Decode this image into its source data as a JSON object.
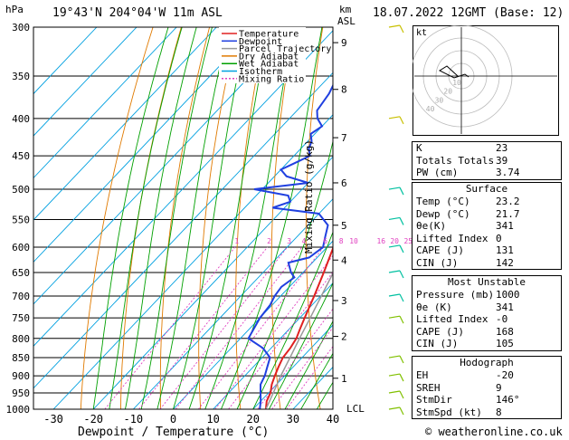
{
  "header": {
    "location": "19°43'N  204°04'W  11m  ASL",
    "datetime": "18.07.2022  12GMT  (Base: 12)",
    "hpa_label": "hPa",
    "km_label": "km",
    "asl_label": "ASL"
  },
  "axis": {
    "xlabel": "Dewpoint / Temperature (°C)",
    "mixing_ratio_label": "Mixing Ratio (g/kg)",
    "lcl_label": "LCL"
  },
  "legend": [
    {
      "label": "Temperature",
      "color": "#e02020"
    },
    {
      "label": "Dewpoint",
      "color": "#2040e0"
    },
    {
      "label": "Parcel Trajectory",
      "color": "#999999"
    },
    {
      "label": "Dry Adiabat",
      "color": "#e07a00"
    },
    {
      "label": "Wet Adiabat",
      "color": "#00a000"
    },
    {
      "label": "Isotherm",
      "color": "#00a0e0"
    },
    {
      "label": "Mixing Ratio",
      "color": "#e040c0"
    }
  ],
  "chart_data": {
    "type": "line",
    "title": "",
    "xlabel": "Dewpoint / Temperature (°C)",
    "ylabel": "hPa",
    "xlim": [
      -35,
      40
    ],
    "ylim": [
      1000,
      300
    ],
    "pressure_ticks": [
      300,
      350,
      400,
      450,
      500,
      550,
      600,
      650,
      700,
      750,
      800,
      850,
      900,
      950,
      1000
    ],
    "temp_ticks": [
      -30,
      -20,
      -10,
      0,
      10,
      20,
      30,
      40
    ],
    "km_ticks": [
      {
        "km": "1",
        "p": 907
      },
      {
        "km": "2",
        "p": 795
      },
      {
        "km": "3",
        "p": 710
      },
      {
        "km": "4",
        "p": 625
      },
      {
        "km": "5",
        "p": 560
      },
      {
        "km": "6",
        "p": 490
      },
      {
        "km": "7",
        "p": 425
      },
      {
        "km": "8",
        "p": 365
      },
      {
        "km": "9",
        "p": 315
      }
    ],
    "mixing_ratio_values": [
      "1",
      "2",
      "3",
      "4",
      "6",
      "8",
      "10",
      "16",
      "20",
      "25"
    ],
    "series": [
      {
        "name": "Temperature",
        "p": [
          1000,
          975,
          950,
          925,
          900,
          875,
          850,
          825,
          800,
          775,
          750,
          700,
          650,
          600,
          550,
          500,
          450,
          400,
          350,
          300
        ],
        "values": [
          23.2,
          21.5,
          20.5,
          18.8,
          17.5,
          16.3,
          15.2,
          14.8,
          14.0,
          12.6,
          11.2,
          8.4,
          5.2,
          1.6,
          -2.0,
          -7.0,
          -10.5,
          -17.0,
          -24.0,
          -31.5
        ]
      },
      {
        "name": "Dewpoint",
        "p": [
          1000,
          975,
          950,
          925,
          900,
          875,
          850,
          825,
          800,
          775,
          750,
          720,
          700,
          680,
          660,
          650,
          630,
          620,
          600,
          580,
          560,
          540,
          530,
          520,
          510,
          500,
          490,
          480,
          470,
          460,
          450,
          440,
          430,
          420,
          410,
          400,
          390,
          380,
          370,
          360,
          350,
          340,
          330,
          320,
          310,
          300
        ],
        "values": [
          21.7,
          20.0,
          18.0,
          16.0,
          15.0,
          13.5,
          12.0,
          8.0,
          2.0,
          1.0,
          0.0,
          -0.5,
          -1.5,
          -2.0,
          -1.0,
          -3.0,
          -6.0,
          -2.0,
          -1.0,
          -3.0,
          -5.0,
          -10.0,
          -23.0,
          -20.0,
          -22.0,
          -32.0,
          -20.0,
          -27.0,
          -30.0,
          -28.0,
          -26.0,
          -28.0,
          -29.0,
          -31.0,
          -30.0,
          -33.0,
          -35.0,
          -35.5,
          -36.0,
          -37.0,
          -39.0,
          -38.5,
          -42.0,
          -44.0,
          -46.0,
          -48.0
        ]
      },
      {
        "name": "Parcel Trajectory",
        "p": [
          1000,
          950,
          900,
          850,
          800,
          750,
          700,
          650,
          600,
          550,
          500,
          450,
          400,
          350,
          300
        ],
        "values": [
          23.2,
          21.2,
          19.0,
          17.0,
          14.8,
          12.6,
          10.2,
          7.6,
          4.8,
          1.8,
          -1.6,
          -5.4,
          -9.8,
          -15.2,
          -22.0
        ]
      }
    ]
  },
  "hodograph": {
    "label": "kt",
    "rings": [
      "10",
      "20",
      "30",
      "40"
    ]
  },
  "indices": [
    {
      "label": "K",
      "value": "23"
    },
    {
      "label": "Totals Totals",
      "value": "39"
    },
    {
      "label": "PW (cm)",
      "value": "3.74"
    }
  ],
  "surface": {
    "title": "Surface",
    "rows": [
      {
        "label": "Temp (°C)",
        "value": "23.2"
      },
      {
        "label": "Dewp (°C)",
        "value": "21.7"
      },
      {
        "label": "θe(K)",
        "value": "341"
      },
      {
        "label": "Lifted Index",
        "value": "0"
      },
      {
        "label": "CAPE (J)",
        "value": "131"
      },
      {
        "label": "CIN (J)",
        "value": "142"
      }
    ]
  },
  "most_unstable": {
    "title": "Most Unstable",
    "rows": [
      {
        "label": "Pressure (mb)",
        "value": "1000"
      },
      {
        "label": "θe (K)",
        "value": "341"
      },
      {
        "label": "Lifted Index",
        "value": "-0"
      },
      {
        "label": "CAPE (J)",
        "value": "168"
      },
      {
        "label": "CIN (J)",
        "value": "105"
      }
    ]
  },
  "hodograph_table": {
    "title": "Hodograph",
    "rows": [
      {
        "label": "EH",
        "value": "-20"
      },
      {
        "label": "SREH",
        "value": "9"
      },
      {
        "label": "StmDir",
        "value": "146°"
      },
      {
        "label": "StmSpd (kt)",
        "value": "8"
      }
    ]
  },
  "copyright": "© weatheronline.co.uk",
  "colors": {
    "temperature": "#e02020",
    "dewpoint": "#2040e0",
    "parcel": "#999999",
    "dry_adiabat": "#e07a00",
    "wet_adiabat": "#00a000",
    "isotherm": "#00a0e0",
    "mixing_ratio": "#e040c0"
  }
}
